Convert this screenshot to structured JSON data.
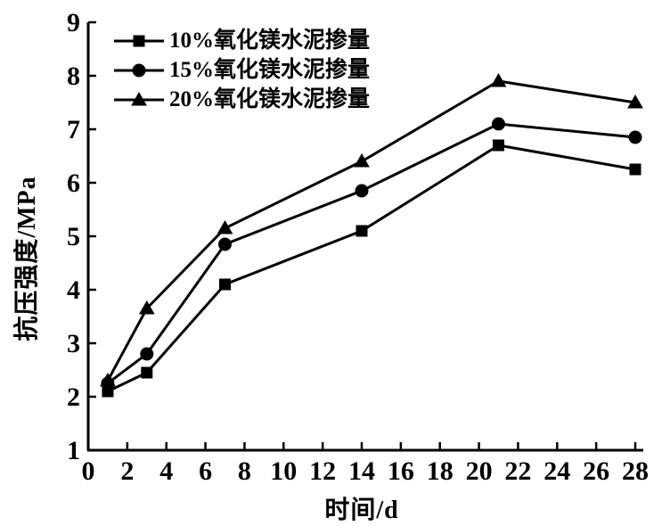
{
  "chart_data": {
    "type": "line",
    "title": "",
    "xlabel": "时间/d",
    "ylabel": "抗压强度/MPa",
    "x": [
      1,
      3,
      7,
      14,
      21,
      28
    ],
    "xlim": [
      0,
      28
    ],
    "xtick_step": 2,
    "ylim": [
      1,
      9
    ],
    "ytick_step": 1,
    "grid": false,
    "legend_position": "top-left-inside",
    "line_color": "#000000",
    "background": "#ffffff",
    "series": [
      {
        "name": "10%氧化镁水泥掺量",
        "marker": "square",
        "values": [
          2.1,
          2.45,
          4.1,
          5.1,
          6.7,
          6.25
        ]
      },
      {
        "name": "15%氧化镁水泥掺量",
        "marker": "circle",
        "values": [
          2.25,
          2.8,
          4.85,
          5.85,
          7.1,
          6.85
        ]
      },
      {
        "name": "20%氧化镁水泥掺量",
        "marker": "triangle",
        "values": [
          2.3,
          3.65,
          5.15,
          6.4,
          7.9,
          7.5
        ]
      }
    ]
  }
}
